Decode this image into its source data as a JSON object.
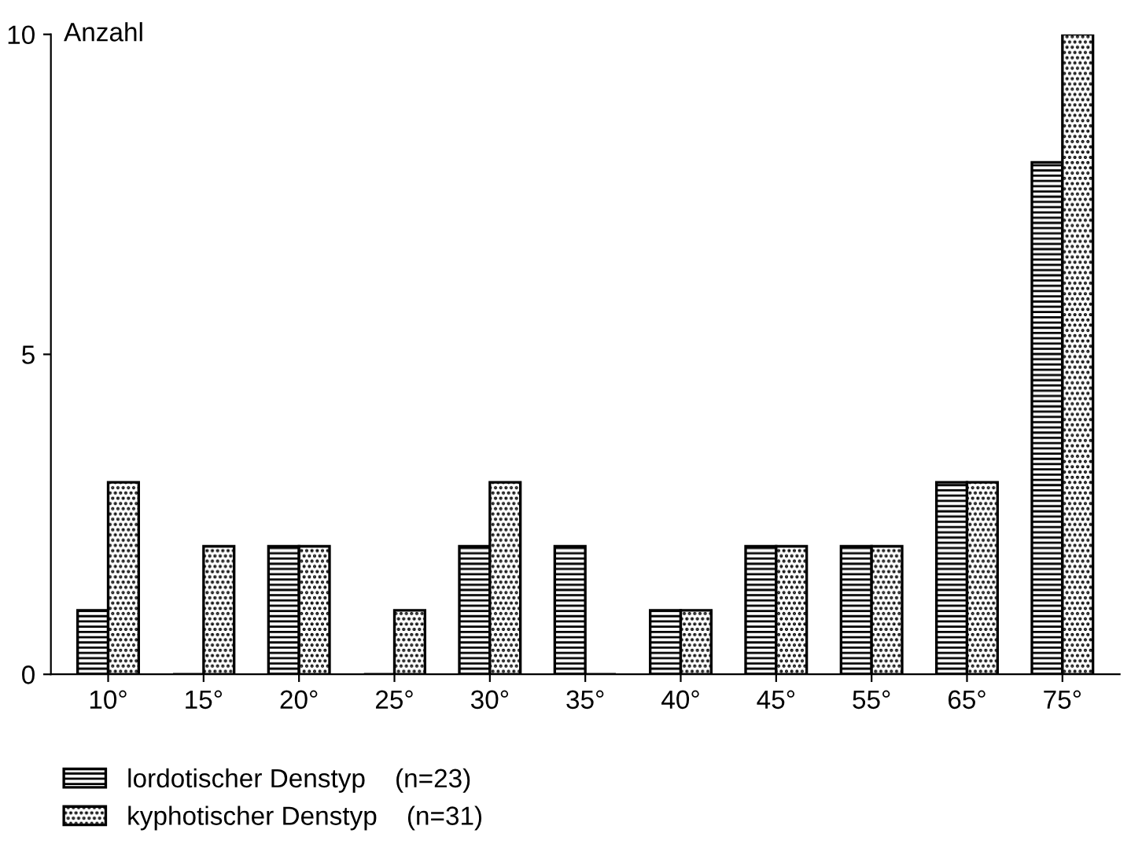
{
  "chart_data": {
    "type": "bar",
    "ylabel": "Anzahl",
    "categories": [
      "10°",
      "15°",
      "20°",
      "25°",
      "30°",
      "35°",
      "40°",
      "45°",
      "55°",
      "65°",
      "75°"
    ],
    "series": [
      {
        "name": "lordotischer Denstyp    (n=23)",
        "color": "#000000",
        "values": [
          1,
          0,
          2,
          0,
          2,
          2,
          1,
          2,
          2,
          3,
          8
        ]
      },
      {
        "name": "kyphotischer Denstyp    (n=31)",
        "color": "#000000",
        "values": [
          3,
          2,
          2,
          1,
          3,
          0,
          1,
          2,
          2,
          3,
          10
        ]
      }
    ],
    "ylim": [
      0,
      10
    ],
    "yticks": [
      0,
      5,
      10
    ],
    "grid": false,
    "legend": "bottom left"
  }
}
